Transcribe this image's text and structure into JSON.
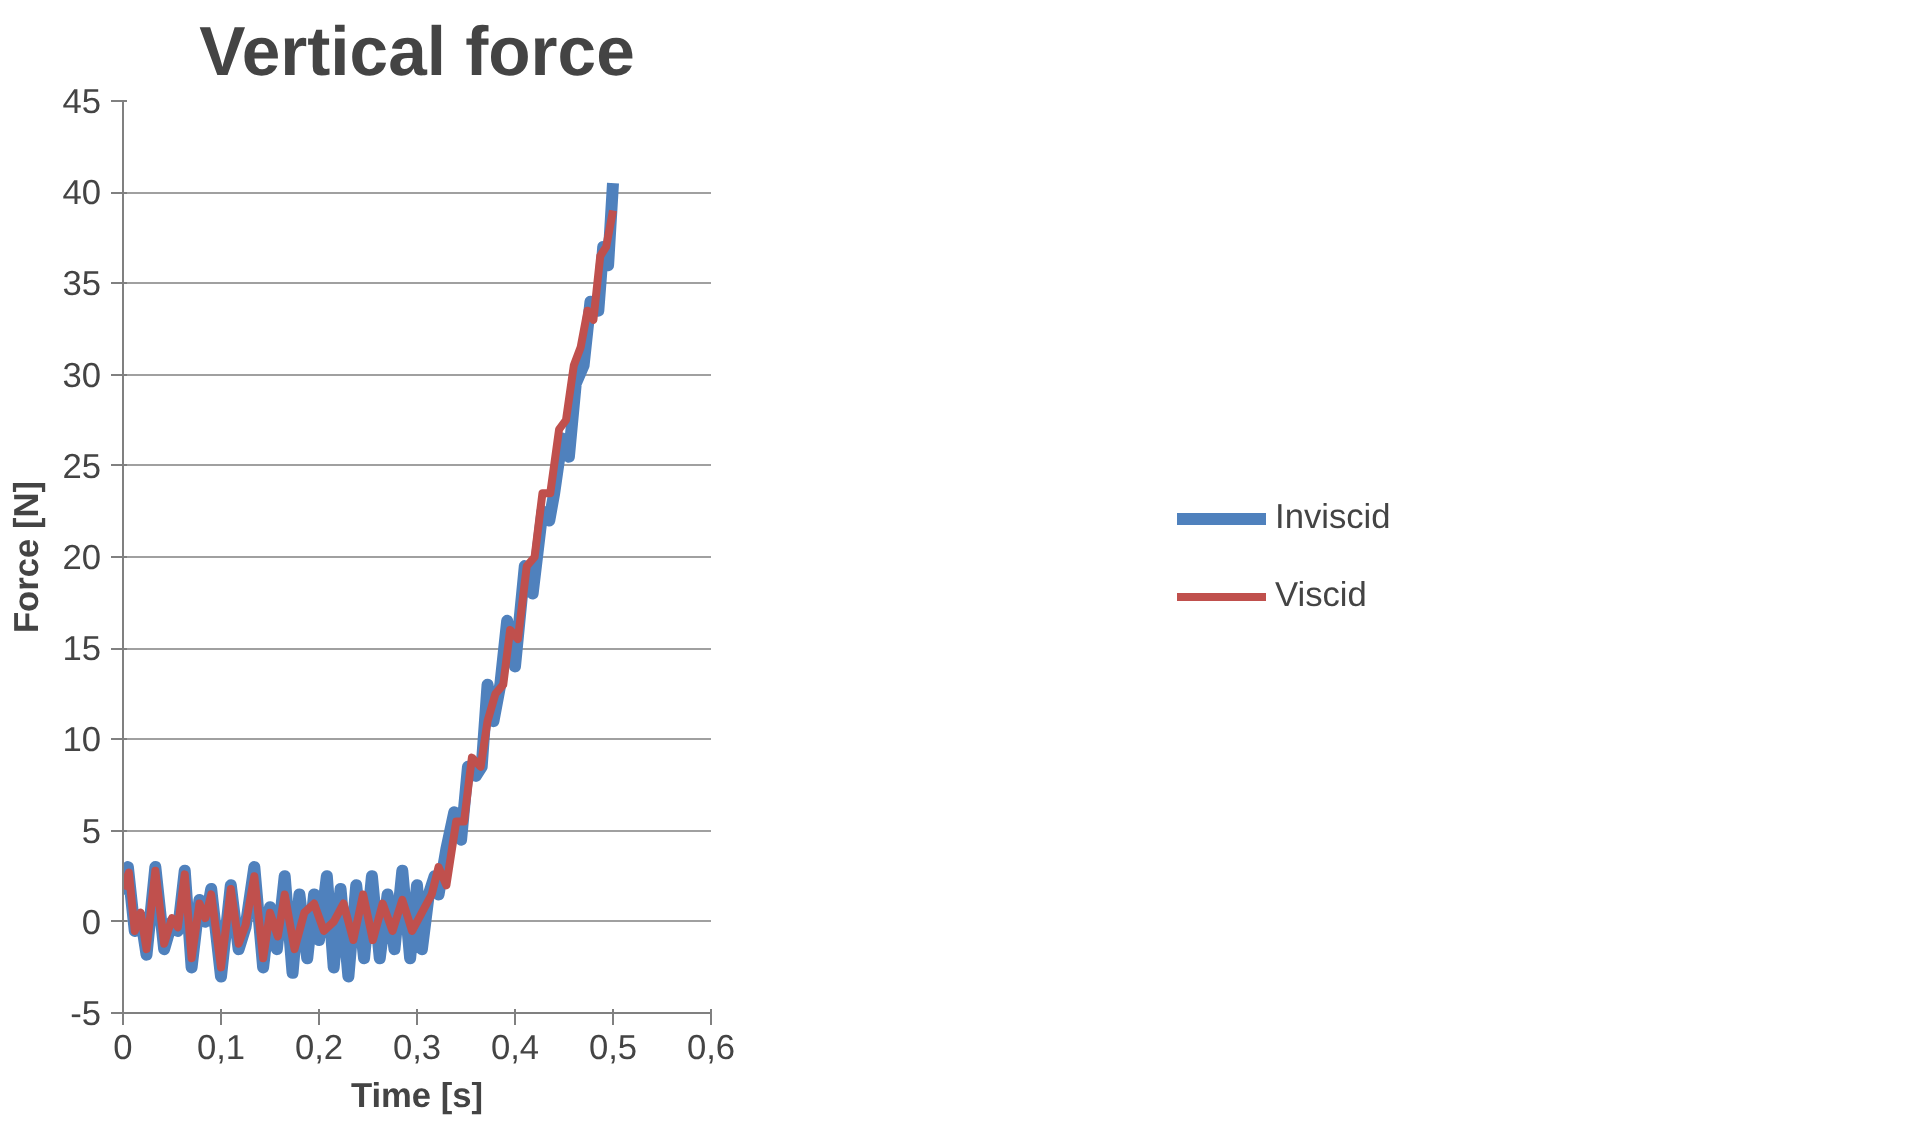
{
  "chart_data": {
    "type": "line",
    "title": "Vertical force",
    "xlabel": "Time [s]",
    "ylabel": "Force [N]",
    "xlim": [
      0,
      0.6
    ],
    "ylim": [
      -5,
      45
    ],
    "xticks": [
      {
        "value": 0,
        "label": "0"
      },
      {
        "value": 0.1,
        "label": "0,1"
      },
      {
        "value": 0.2,
        "label": "0,2"
      },
      {
        "value": 0.3,
        "label": "0,3"
      },
      {
        "value": 0.4,
        "label": "0,4"
      },
      {
        "value": 0.5,
        "label": "0,5"
      },
      {
        "value": 0.6,
        "label": "0,6"
      }
    ],
    "yticks": [
      -5,
      0,
      5,
      10,
      15,
      20,
      25,
      30,
      35,
      40,
      45
    ],
    "grid": "y",
    "legend": "right",
    "marker": "none",
    "line_style": "solid",
    "series": [
      {
        "name": "Inviscid",
        "color": "#4f81bd",
        "x": [
          0,
          0.005,
          0.012,
          0.018,
          0.024,
          0.033,
          0.042,
          0.05,
          0.056,
          0.063,
          0.07,
          0.078,
          0.084,
          0.09,
          0.1,
          0.11,
          0.118,
          0.125,
          0.134,
          0.143,
          0.15,
          0.157,
          0.165,
          0.173,
          0.18,
          0.188,
          0.195,
          0.2,
          0.208,
          0.215,
          0.222,
          0.23,
          0.238,
          0.246,
          0.254,
          0.262,
          0.27,
          0.277,
          0.285,
          0.293,
          0.3,
          0.305,
          0.312,
          0.318,
          0.322,
          0.33,
          0.338,
          0.345,
          0.352,
          0.36,
          0.366,
          0.372,
          0.378,
          0.385,
          0.392,
          0.4,
          0.41,
          0.418,
          0.428,
          0.435,
          0.44,
          0.448,
          0.455,
          0.462,
          0.47,
          0.477,
          0.485,
          0.49,
          0.495,
          0.5
        ],
        "values": [
          1.5,
          3.0,
          -0.5,
          0.3,
          -1.8,
          3.0,
          -1.5,
          0,
          -0.5,
          2.8,
          -2.5,
          1.2,
          0,
          1.8,
          -3.0,
          2.0,
          -1.5,
          -0.3,
          3.0,
          -2.5,
          0.8,
          -1.5,
          2.5,
          -2.8,
          1.5,
          -2.0,
          1.5,
          -1.0,
          2.5,
          -2.5,
          1.8,
          -3.0,
          2.0,
          -2.0,
          2.5,
          -2.0,
          1.5,
          -1.5,
          2.8,
          -2.0,
          2.0,
          -1.5,
          1.5,
          2.5,
          1.5,
          4.0,
          6.0,
          4.5,
          8.5,
          8.0,
          8.5,
          13.0,
          11.0,
          13.0,
          16.5,
          14.0,
          19.5,
          18.0,
          22.5,
          22.0,
          23.5,
          26.5,
          25.5,
          29.5,
          30.5,
          34.0,
          33.5,
          37.0,
          36.0,
          40.5
        ]
      },
      {
        "name": "Viscid",
        "color": "#c0504d",
        "x": [
          0,
          0.006,
          0.012,
          0.018,
          0.024,
          0.033,
          0.042,
          0.05,
          0.056,
          0.063,
          0.07,
          0.078,
          0.084,
          0.09,
          0.1,
          0.11,
          0.118,
          0.125,
          0.134,
          0.143,
          0.15,
          0.158,
          0.165,
          0.175,
          0.185,
          0.195,
          0.205,
          0.215,
          0.225,
          0.235,
          0.245,
          0.255,
          0.265,
          0.275,
          0.285,
          0.295,
          0.305,
          0.315,
          0.322,
          0.33,
          0.34,
          0.348,
          0.356,
          0.365,
          0.372,
          0.38,
          0.388,
          0.395,
          0.403,
          0.412,
          0.42,
          0.428,
          0.436,
          0.445,
          0.452,
          0.46,
          0.467,
          0.474,
          0.48,
          0.487,
          0.493,
          0.5
        ],
        "values": [
          1.8,
          2.7,
          -0.5,
          0.5,
          -1.5,
          2.8,
          -1.2,
          0.2,
          -0.3,
          2.6,
          -2.0,
          1.0,
          0.2,
          1.5,
          -2.5,
          1.8,
          -1.2,
          -0.2,
          2.5,
          -2.0,
          0.5,
          -0.8,
          1.5,
          -1.5,
          0.5,
          1.0,
          -0.5,
          0.0,
          1.0,
          -1.0,
          1.5,
          -1.0,
          1.0,
          -0.5,
          1.2,
          -0.5,
          0.5,
          1.5,
          3.0,
          2.0,
          5.5,
          5.5,
          9.0,
          8.5,
          11.0,
          12.5,
          13.0,
          16.0,
          15.5,
          19.5,
          20.0,
          23.5,
          23.5,
          27.0,
          27.5,
          30.5,
          31.5,
          33.5,
          33.0,
          36.5,
          37.0,
          39.0
        ]
      }
    ]
  }
}
